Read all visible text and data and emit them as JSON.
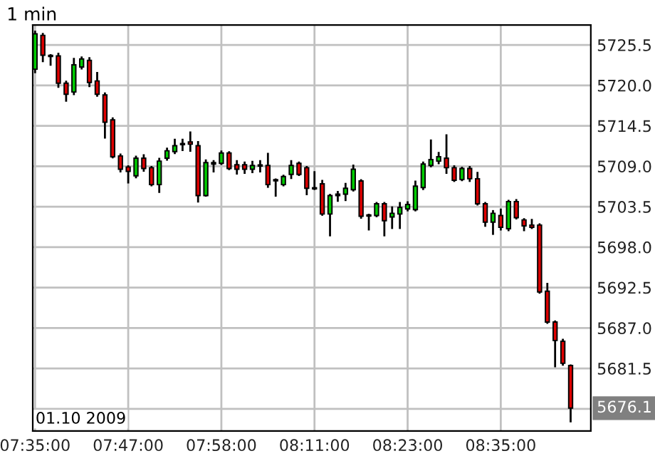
{
  "chart_data": {
    "type": "candlestick",
    "title": "1 min",
    "categories": [
      "07:35:00",
      null,
      null,
      null,
      null,
      null,
      null,
      null,
      null,
      null,
      null,
      null,
      "07:47:00",
      null,
      null,
      null,
      null,
      null,
      null,
      null,
      null,
      null,
      null,
      null,
      "07:58:00",
      null,
      null,
      null,
      null,
      null,
      null,
      null,
      null,
      null,
      null,
      null,
      "08:11:00",
      null,
      null,
      null,
      null,
      null,
      null,
      null,
      null,
      null,
      null,
      null,
      "08:23:00",
      null,
      null,
      null,
      null,
      null,
      null,
      null,
      null,
      null,
      null,
      null,
      "08:35:00",
      null,
      null,
      null,
      null,
      null,
      null,
      null,
      null,
      null
    ],
    "ohlc": [
      [
        5722.2,
        5727.3,
        5721.8,
        5727.0
      ],
      [
        5726.8,
        5727.0,
        5723.3,
        5724.1
      ],
      [
        5724.0,
        5724.1,
        5722.8,
        5724.0
      ],
      [
        5724.0,
        5724.3,
        5719.8,
        5720.3
      ],
      [
        5720.3,
        5720.5,
        5717.9,
        5718.8
      ],
      [
        5719.1,
        5723.6,
        5718.8,
        5722.8
      ],
      [
        5722.5,
        5723.8,
        5722.3,
        5723.6
      ],
      [
        5723.4,
        5723.7,
        5719.9,
        5720.4
      ],
      [
        5720.6,
        5721.7,
        5718.6,
        5718.8
      ],
      [
        5718.7,
        5718.9,
        5712.9,
        5715.0
      ],
      [
        5715.3,
        5715.5,
        5710.2,
        5710.3
      ],
      [
        5710.4,
        5710.6,
        5708.3,
        5708.6
      ],
      [
        5708.9,
        5709.0,
        5706.8,
        5708.3
      ],
      [
        5707.7,
        5710.3,
        5707.5,
        5710.1
      ],
      [
        5710.1,
        5710.5,
        5708.4,
        5708.7
      ],
      [
        5708.8,
        5708.9,
        5706.4,
        5706.5
      ],
      [
        5706.5,
        5710.0,
        5705.5,
        5709.7
      ],
      [
        5710.1,
        5711.4,
        5709.9,
        5711.1
      ],
      [
        5711.0,
        5712.6,
        5710.8,
        5711.8
      ],
      [
        5712.0,
        5712.6,
        5711.2,
        5712.0
      ],
      [
        5712.3,
        5713.6,
        5711.1,
        5712.0
      ],
      [
        5711.8,
        5712.3,
        5704.2,
        5705.0
      ],
      [
        5705.0,
        5709.8,
        5705.0,
        5709.5
      ],
      [
        5709.3,
        5709.7,
        5708.3,
        5709.5
      ],
      [
        5709.4,
        5711.0,
        5709.3,
        5710.8
      ],
      [
        5710.8,
        5710.9,
        5708.6,
        5708.7
      ],
      [
        5709.2,
        5709.7,
        5708.0,
        5708.6
      ],
      [
        5709.2,
        5709.5,
        5708.1,
        5708.6
      ],
      [
        5708.6,
        5709.6,
        5708.2,
        5709.1
      ],
      [
        5709.1,
        5709.7,
        5708.3,
        5709.1
      ],
      [
        5709.1,
        5710.7,
        5706.2,
        5706.5
      ],
      [
        5707.1,
        5707.2,
        5705.0,
        5707.1
      ],
      [
        5706.5,
        5707.7,
        5706.4,
        5707.6
      ],
      [
        5707.9,
        5709.7,
        5707.4,
        5709.1
      ],
      [
        5709.4,
        5709.5,
        5707.8,
        5707.9
      ],
      [
        5708.8,
        5708.9,
        5705.2,
        5706.0
      ],
      [
        5706.0,
        5708.2,
        5705.9,
        5706.0
      ],
      [
        5706.6,
        5707.0,
        5702.4,
        5702.5
      ],
      [
        5702.5,
        5705.1,
        5699.6,
        5705.0
      ],
      [
        5705.0,
        5705.5,
        5704.3,
        5705.2
      ],
      [
        5705.2,
        5706.6,
        5704.4,
        5706.0
      ],
      [
        5705.8,
        5709.1,
        5705.7,
        5708.6
      ],
      [
        5707.0,
        5707.1,
        5702.0,
        5702.2
      ],
      [
        5702.3,
        5702.4,
        5700.4,
        5702.3
      ],
      [
        5702.3,
        5704.0,
        5702.2,
        5703.9
      ],
      [
        5703.9,
        5704.0,
        5699.6,
        5701.6
      ],
      [
        5702.1,
        5703.4,
        5700.6,
        5702.6
      ],
      [
        5702.5,
        5704.0,
        5700.6,
        5703.4
      ],
      [
        5703.2,
        5704.1,
        5703.0,
        5703.8
      ],
      [
        5703.1,
        5706.9,
        5703.0,
        5706.3
      ],
      [
        5706.1,
        5709.5,
        5705.9,
        5709.3
      ],
      [
        5709.1,
        5712.5,
        5709.0,
        5709.9
      ],
      [
        5709.7,
        5710.8,
        5709.4,
        5710.3
      ],
      [
        5710.1,
        5713.2,
        5708.1,
        5708.8
      ],
      [
        5708.8,
        5709.0,
        5707.0,
        5707.1
      ],
      [
        5707.2,
        5708.8,
        5707.1,
        5708.7
      ],
      [
        5708.7,
        5708.9,
        5707.0,
        5707.3
      ],
      [
        5707.3,
        5708.1,
        5703.8,
        5703.9
      ],
      [
        5703.9,
        5704.0,
        5700.9,
        5701.4
      ],
      [
        5701.4,
        5702.9,
        5699.8,
        5702.6
      ],
      [
        5702.3,
        5703.1,
        5700.4,
        5700.7
      ],
      [
        5700.5,
        5704.3,
        5700.3,
        5704.2
      ],
      [
        5704.2,
        5704.4,
        5701.9,
        5702.0
      ],
      [
        5701.7,
        5701.8,
        5700.3,
        5700.9
      ],
      [
        5701.0,
        5701.7,
        5700.6,
        5700.7
      ],
      [
        5701.0,
        5701.1,
        5691.8,
        5691.9
      ],
      [
        5692.0,
        5693.0,
        5687.7,
        5687.8
      ],
      [
        5687.8,
        5687.9,
        5681.8,
        5685.3
      ],
      [
        5685.2,
        5685.4,
        5682.0,
        5682.2
      ],
      [
        5681.9,
        5681.9,
        5674.3,
        5676.1
      ]
    ],
    "colors": [
      "#00cc00",
      "#dd0000",
      "#dd0000",
      "#dd0000",
      "#dd0000",
      "#00cc00",
      "#00cc00",
      "#dd0000",
      "#dd0000",
      "#dd0000",
      "#dd0000",
      "#dd0000",
      "#dd0000",
      "#00cc00",
      "#dd0000",
      "#dd0000",
      "#00cc00",
      "#00cc00",
      "#00cc00",
      "#dd0000",
      "#dd0000",
      "#dd0000",
      "#00cc00",
      "#00cc00",
      "#00cc00",
      "#dd0000",
      "#dd0000",
      "#dd0000",
      "#00cc00",
      "#dd0000",
      "#dd0000",
      "#dd0000",
      "#00cc00",
      "#00cc00",
      "#dd0000",
      "#dd0000",
      "#dd0000",
      "#dd0000",
      "#00cc00",
      "#00cc00",
      "#00cc00",
      "#00cc00",
      "#dd0000",
      "#dd0000",
      "#00cc00",
      "#dd0000",
      "#00cc00",
      "#00cc00",
      "#00cc00",
      "#00cc00",
      "#00cc00",
      "#00cc00",
      "#00cc00",
      "#dd0000",
      "#dd0000",
      "#00cc00",
      "#dd0000",
      "#dd0000",
      "#dd0000",
      "#00cc00",
      "#dd0000",
      "#00cc00",
      "#dd0000",
      "#dd0000",
      "#dd0000",
      "#dd0000",
      "#dd0000",
      "#dd0000",
      "#dd0000",
      "#dd0000"
    ],
    "ylim": [
      5673.0,
      5728.2
    ],
    "yticks": [
      {
        "value": 5676,
        "label": null
      },
      5681.5,
      {
        "value": 5687,
        "label": "5687.0"
      },
      5692.5,
      {
        "value": 5698,
        "label": "5698.0"
      },
      5703.5,
      {
        "value": 5709,
        "label": "5709.0"
      },
      5714.5,
      {
        "value": 5720,
        "label": "5720.0"
      },
      5725.5
    ],
    "grid": true,
    "annotations": [
      "01.10 2009",
      {
        "text": "5676.1",
        "y": 5676.1
      }
    ]
  }
}
